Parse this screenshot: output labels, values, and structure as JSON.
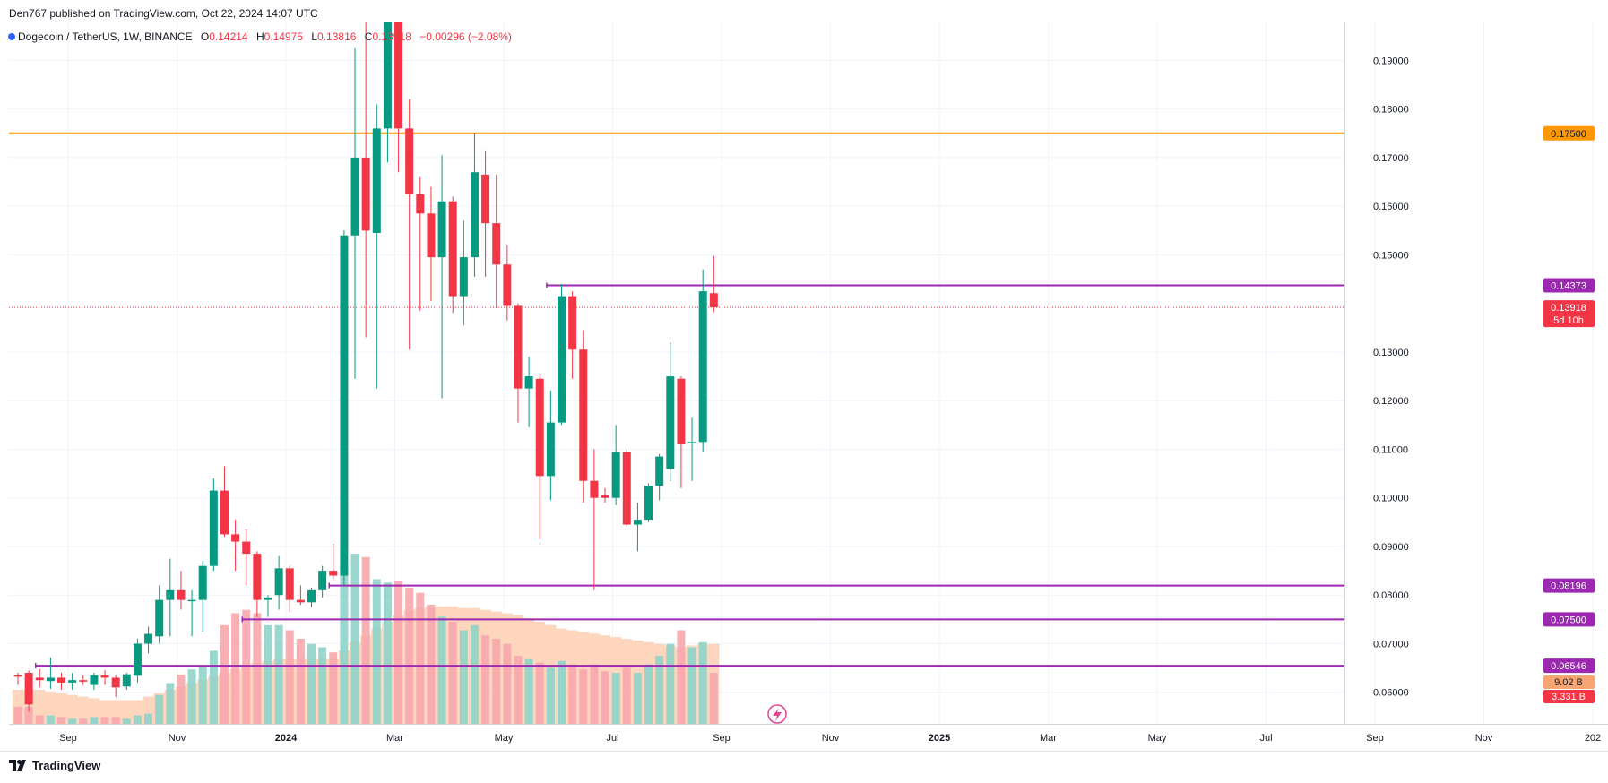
{
  "header": {
    "published": "Den767 published on TradingView.com, Oct 22, 2024 14:07 UTC"
  },
  "legend": {
    "symbol": "Dogecoin / TetherUS, 1W, BINANCE",
    "o_label": "O",
    "o_value": "0.14214",
    "h_label": "H",
    "h_value": "0.14975",
    "l_label": "L",
    "l_value": "0.13816",
    "c_label": "C",
    "c_value": "0.13918",
    "change": "−0.00296 (−2.08%)"
  },
  "footer": {
    "brand": "TradingView"
  },
  "colors": {
    "up": "#089981",
    "down": "#f23645",
    "support": "#9c27b0",
    "resistance": "#ff9800",
    "vol_up": "#8fd3c9",
    "vol_down": "#f7a7ad",
    "volume_ma_fill": "#fdcfb2"
  },
  "chart_data": {
    "type": "candlestick",
    "symbol": "Dogecoin / TetherUS",
    "interval": "1W",
    "exchange": "BINANCE",
    "ylim": [
      0.0535,
      0.198
    ],
    "y_ticks": [
      "0.19000",
      "0.18000",
      "0.17000",
      "0.16000",
      "0.15000",
      "0.13000",
      "0.12000",
      "0.11000",
      "0.10000",
      "0.09000",
      "0.08000",
      "0.07000",
      "0.06000"
    ],
    "x_ticks": [
      "Sep",
      "Nov",
      "2024",
      "Mar",
      "May",
      "Jul",
      "Sep",
      "Nov",
      "2025",
      "Mar",
      "May",
      "Jul",
      "Sep",
      "Nov",
      "202"
    ],
    "candles": [
      {
        "o": 0.0635,
        "h": 0.064,
        "l": 0.0615,
        "c": 0.0632
      },
      {
        "o": 0.064,
        "h": 0.0645,
        "l": 0.056,
        "c": 0.0575
      },
      {
        "o": 0.063,
        "h": 0.0648,
        "l": 0.061,
        "c": 0.0625
      },
      {
        "o": 0.0623,
        "h": 0.0672,
        "l": 0.0607,
        "c": 0.063
      },
      {
        "o": 0.063,
        "h": 0.064,
        "l": 0.0605,
        "c": 0.062
      },
      {
        "o": 0.062,
        "h": 0.064,
        "l": 0.0605,
        "c": 0.0625
      },
      {
        "o": 0.0625,
        "h": 0.0635,
        "l": 0.0615,
        "c": 0.0622
      },
      {
        "o": 0.0615,
        "h": 0.064,
        "l": 0.0605,
        "c": 0.0635
      },
      {
        "o": 0.0635,
        "h": 0.0645,
        "l": 0.0615,
        "c": 0.063
      },
      {
        "o": 0.063,
        "h": 0.0635,
        "l": 0.059,
        "c": 0.061
      },
      {
        "o": 0.0612,
        "h": 0.064,
        "l": 0.0605,
        "c": 0.0637
      },
      {
        "o": 0.0634,
        "h": 0.071,
        "l": 0.062,
        "c": 0.07
      },
      {
        "o": 0.07,
        "h": 0.0735,
        "l": 0.068,
        "c": 0.072
      },
      {
        "o": 0.0715,
        "h": 0.082,
        "l": 0.07,
        "c": 0.079
      },
      {
        "o": 0.079,
        "h": 0.0875,
        "l": 0.0715,
        "c": 0.081
      },
      {
        "o": 0.081,
        "h": 0.085,
        "l": 0.077,
        "c": 0.079
      },
      {
        "o": 0.079,
        "h": 0.081,
        "l": 0.0715,
        "c": 0.079
      },
      {
        "o": 0.079,
        "h": 0.087,
        "l": 0.0725,
        "c": 0.086
      },
      {
        "o": 0.086,
        "h": 0.104,
        "l": 0.085,
        "c": 0.1015
      },
      {
        "o": 0.1015,
        "h": 0.1065,
        "l": 0.092,
        "c": 0.0925
      },
      {
        "o": 0.0925,
        "h": 0.0955,
        "l": 0.085,
        "c": 0.091
      },
      {
        "o": 0.091,
        "h": 0.0935,
        "l": 0.082,
        "c": 0.0885
      },
      {
        "o": 0.0885,
        "h": 0.089,
        "l": 0.0755,
        "c": 0.079
      },
      {
        "o": 0.079,
        "h": 0.08,
        "l": 0.0755,
        "c": 0.0795
      },
      {
        "o": 0.08,
        "h": 0.088,
        "l": 0.077,
        "c": 0.0855
      },
      {
        "o": 0.0855,
        "h": 0.086,
        "l": 0.0765,
        "c": 0.079
      },
      {
        "o": 0.079,
        "h": 0.082,
        "l": 0.078,
        "c": 0.0785
      },
      {
        "o": 0.0785,
        "h": 0.0815,
        "l": 0.0775,
        "c": 0.081
      },
      {
        "o": 0.081,
        "h": 0.086,
        "l": 0.0795,
        "c": 0.085
      },
      {
        "o": 0.085,
        "h": 0.0905,
        "l": 0.083,
        "c": 0.084
      },
      {
        "o": 0.084,
        "h": 0.155,
        "l": 0.082,
        "c": 0.154
      },
      {
        "o": 0.154,
        "h": 0.1925,
        "l": 0.1245,
        "c": 0.17
      },
      {
        "o": 0.17,
        "h": 0.2,
        "l": 0.133,
        "c": 0.155
      },
      {
        "o": 0.1545,
        "h": 0.181,
        "l": 0.1225,
        "c": 0.176
      },
      {
        "o": 0.176,
        "h": 0.205,
        "l": 0.169,
        "c": 0.2
      },
      {
        "o": 0.205,
        "h": 0.21,
        "l": 0.167,
        "c": 0.176
      },
      {
        "o": 0.176,
        "h": 0.182,
        "l": 0.1305,
        "c": 0.1625
      },
      {
        "o": 0.1625,
        "h": 0.166,
        "l": 0.1385,
        "c": 0.1585
      },
      {
        "o": 0.1585,
        "h": 0.164,
        "l": 0.1405,
        "c": 0.1495
      },
      {
        "o": 0.1495,
        "h": 0.1705,
        "l": 0.1205,
        "c": 0.161
      },
      {
        "o": 0.161,
        "h": 0.162,
        "l": 0.138,
        "c": 0.1415
      },
      {
        "o": 0.1415,
        "h": 0.157,
        "l": 0.1355,
        "c": 0.1495
      },
      {
        "o": 0.1495,
        "h": 0.175,
        "l": 0.1455,
        "c": 0.167
      },
      {
        "o": 0.1665,
        "h": 0.1715,
        "l": 0.1455,
        "c": 0.1565
      },
      {
        "o": 0.1565,
        "h": 0.1665,
        "l": 0.139,
        "c": 0.148
      },
      {
        "o": 0.148,
        "h": 0.152,
        "l": 0.1365,
        "c": 0.1395
      },
      {
        "o": 0.1395,
        "h": 0.14,
        "l": 0.1155,
        "c": 0.1225
      },
      {
        "o": 0.1225,
        "h": 0.129,
        "l": 0.1145,
        "c": 0.125
      },
      {
        "o": 0.1245,
        "h": 0.1255,
        "l": 0.0915,
        "c": 0.1045
      },
      {
        "o": 0.1045,
        "h": 0.122,
        "l": 0.0995,
        "c": 0.1155
      },
      {
        "o": 0.1155,
        "h": 0.144,
        "l": 0.115,
        "c": 0.1415
      },
      {
        "o": 0.1415,
        "h": 0.1425,
        "l": 0.1245,
        "c": 0.1305
      },
      {
        "o": 0.1305,
        "h": 0.1345,
        "l": 0.099,
        "c": 0.1035
      },
      {
        "o": 0.1035,
        "h": 0.11,
        "l": 0.081,
        "c": 0.1
      },
      {
        "o": 0.1005,
        "h": 0.102,
        "l": 0.099,
        "c": 0.1
      },
      {
        "o": 0.1,
        "h": 0.115,
        "l": 0.0985,
        "c": 0.1095
      },
      {
        "o": 0.1095,
        "h": 0.11,
        "l": 0.094,
        "c": 0.0945
      },
      {
        "o": 0.0945,
        "h": 0.099,
        "l": 0.089,
        "c": 0.0955
      },
      {
        "o": 0.0955,
        "h": 0.103,
        "l": 0.095,
        "c": 0.1025
      },
      {
        "o": 0.1025,
        "h": 0.109,
        "l": 0.0995,
        "c": 0.1085
      },
      {
        "o": 0.106,
        "h": 0.132,
        "l": 0.1035,
        "c": 0.125
      },
      {
        "o": 0.1245,
        "h": 0.125,
        "l": 0.102,
        "c": 0.111
      },
      {
        "o": 0.1115,
        "h": 0.1165,
        "l": 0.1035,
        "c": 0.1115
      },
      {
        "o": 0.1115,
        "h": 0.147,
        "l": 0.1095,
        "c": 0.1425
      },
      {
        "o": 0.1421,
        "h": 0.1498,
        "l": 0.1382,
        "c": 0.1392
      }
    ],
    "volume_scale_max": 1.0,
    "volumes": [
      0.1,
      0.1,
      0.05,
      0.05,
      0.04,
      0.03,
      0.03,
      0.04,
      0.04,
      0.04,
      0.03,
      0.05,
      0.06,
      0.17,
      0.24,
      0.29,
      0.32,
      0.34,
      0.43,
      0.58,
      0.65,
      0.67,
      0.65,
      0.58,
      0.58,
      0.55,
      0.5,
      0.47,
      0.45,
      0.42,
      0.95,
      1.0,
      0.98,
      0.85,
      0.83,
      0.84,
      0.8,
      0.77,
      0.7,
      0.63,
      0.6,
      0.55,
      0.58,
      0.52,
      0.5,
      0.47,
      0.4,
      0.38,
      0.36,
      0.33,
      0.37,
      0.35,
      0.32,
      0.35,
      0.31,
      0.3,
      0.33,
      0.3,
      0.35,
      0.4,
      0.47,
      0.55,
      0.45,
      0.48,
      0.3
    ],
    "volume_ma": [
      0.2,
      0.2,
      0.2,
      0.19,
      0.18,
      0.17,
      0.16,
      0.15,
      0.14,
      0.14,
      0.14,
      0.14,
      0.16,
      0.18,
      0.2,
      0.22,
      0.24,
      0.26,
      0.28,
      0.3,
      0.32,
      0.34,
      0.36,
      0.37,
      0.38,
      0.38,
      0.38,
      0.38,
      0.38,
      0.38,
      0.43,
      0.48,
      0.52,
      0.56,
      0.6,
      0.64,
      0.67,
      0.68,
      0.69,
      0.69,
      0.69,
      0.68,
      0.68,
      0.67,
      0.66,
      0.65,
      0.64,
      0.62,
      0.6,
      0.58,
      0.56,
      0.55,
      0.54,
      0.53,
      0.52,
      0.51,
      0.5,
      0.49,
      0.48,
      0.47,
      0.46,
      0.45,
      0.46,
      0.47,
      0.47
    ],
    "horizontal_lines": [
      {
        "price": 0.175,
        "label": "0.17500",
        "color": "#ff9800",
        "text_color": "#131722",
        "start": 0
      },
      {
        "price": 0.14373,
        "label": "0.14373",
        "color": "#9c27b0",
        "text_color": "#ffffff",
        "start": 49
      },
      {
        "price": 0.08196,
        "label": "0.08196",
        "color": "#9c27b0",
        "text_color": "#ffffff",
        "start": 29
      },
      {
        "price": 0.075,
        "label": "0.07500",
        "color": "#9c27b0",
        "text_color": "#ffffff",
        "start": 21
      },
      {
        "price": 0.06546,
        "label": "0.06546",
        "color": "#9c27b0",
        "text_color": "#ffffff",
        "start": 2
      }
    ],
    "last_price": {
      "price": 0.13918,
      "label": "0.13918",
      "countdown": "5d 10h",
      "color": "#f23645"
    },
    "volume_badges": [
      {
        "label": "9.02 B",
        "color": "#f7a572",
        "text_color": "#131722"
      },
      {
        "label": "3.331 B",
        "color": "#f23645",
        "text_color": "#ffffff"
      }
    ]
  }
}
